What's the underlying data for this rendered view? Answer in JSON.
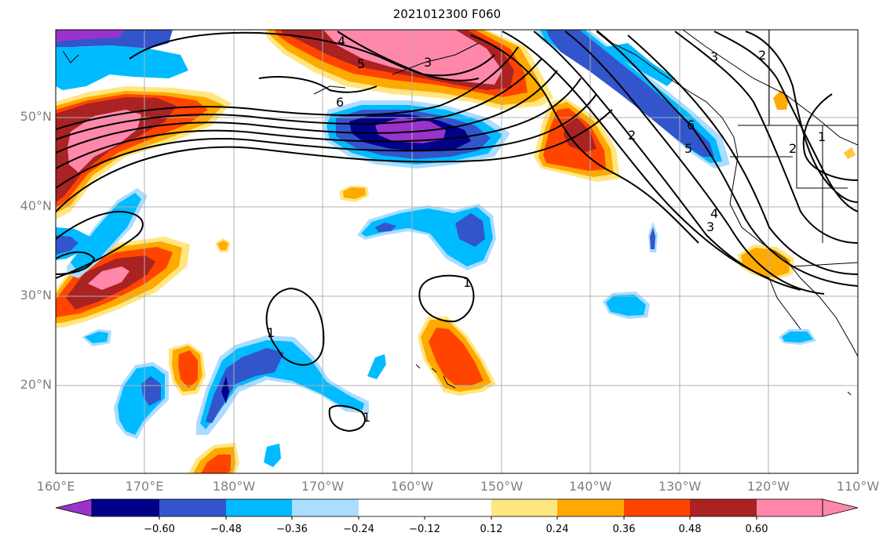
{
  "title": "2021012300 F060",
  "map": {
    "lat_labels": [
      "50°N",
      "40°N",
      "30°N",
      "20°N"
    ],
    "lon_labels": [
      "160°E",
      "170°E",
      "180°W",
      "170°W",
      "160°W",
      "150°W",
      "140°W",
      "130°W",
      "120°W",
      "110°W"
    ],
    "contour_labels": [
      "4",
      "5",
      "6",
      "3",
      "3",
      "2",
      "2",
      "2",
      "5",
      "6",
      "4",
      "3",
      "1",
      "1",
      "1",
      "1"
    ]
  },
  "colorbar": {
    "tick_labels": [
      "−0.60",
      "−0.48",
      "−0.36",
      "−0.24",
      "−0.12",
      "0.12",
      "0.24",
      "0.36",
      "0.48",
      "0.60"
    ],
    "colors": [
      "#9933cc",
      "#000088",
      "#3355cc",
      "#00bbff",
      "#aaddff",
      "#ffffff",
      "#ffe680",
      "#ffaa00",
      "#ff4400",
      "#aa2222",
      "#ff88aa"
    ]
  }
}
